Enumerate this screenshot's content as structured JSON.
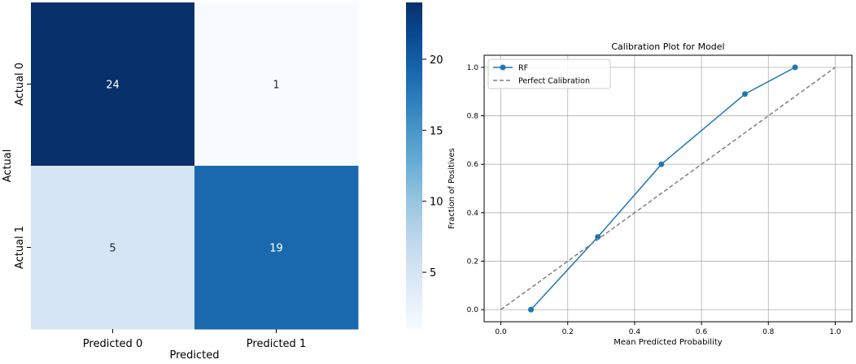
{
  "chart_data": [
    {
      "type": "heatmap",
      "title": "",
      "xlabel": "Predicted",
      "ylabel": "Actual",
      "x_categories": [
        "Predicted 0",
        "Predicted 1"
      ],
      "y_categories": [
        "Actual 0",
        "Actual 1"
      ],
      "values": [
        [
          24,
          1
        ],
        [
          5,
          19
        ]
      ],
      "colormap": "Blues",
      "vmin": 1,
      "vmax": 24,
      "colorbar_ticks": [
        5,
        10,
        15,
        20
      ],
      "colorbar_tick_labels": [
        "5",
        "10",
        "15",
        "20"
      ]
    },
    {
      "type": "line",
      "title": "Calibration Plot for Model",
      "xlabel": "Mean Predicted Probability",
      "ylabel": "Fraction of Positives",
      "xlim": [
        -0.05,
        1.05
      ],
      "ylim": [
        -0.05,
        1.05
      ],
      "x_ticks": [
        0.0,
        0.2,
        0.4,
        0.6,
        0.8,
        1.0
      ],
      "x_tick_labels": [
        "0.0",
        "0.2",
        "0.4",
        "0.6",
        "0.8",
        "1.0"
      ],
      "y_ticks": [
        0.0,
        0.2,
        0.4,
        0.6,
        0.8,
        1.0
      ],
      "y_tick_labels": [
        "0.0",
        "0.2",
        "0.4",
        "0.6",
        "0.8",
        "1.0"
      ],
      "grid": true,
      "legend_position": "top-left",
      "series": [
        {
          "name": "RF",
          "style": "solid-markers",
          "color": "#1f77b4",
          "x": [
            0.09,
            0.29,
            0.48,
            0.73,
            0.88
          ],
          "y": [
            0.0,
            0.3,
            0.6,
            0.89,
            1.0
          ]
        },
        {
          "name": "Perfect Calibration",
          "style": "dashed",
          "color": "#7f7f7f",
          "x": [
            0.0,
            1.0
          ],
          "y": [
            0.0,
            1.0
          ]
        }
      ]
    }
  ]
}
